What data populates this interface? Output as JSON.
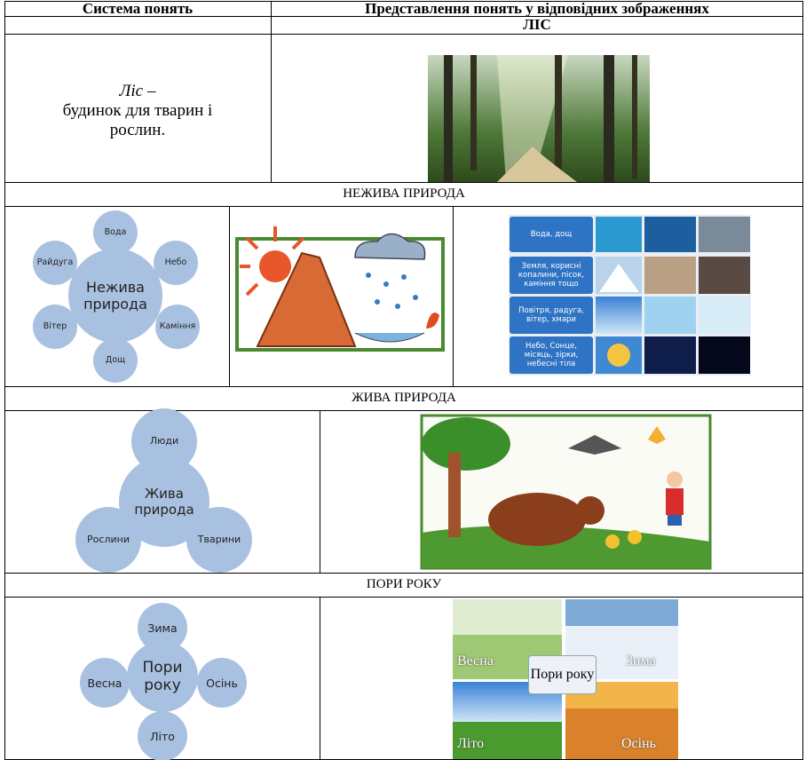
{
  "header": [
    "Система понять",
    "Представлення понять у відповідних зображеннях"
  ],
  "forest": {
    "title": "ЛІС",
    "term": "Ліс",
    "dash": "–",
    "text": "будинок для тварин і рослин."
  },
  "nonliving": {
    "title": "НЕЖИВА ПРИРОДА",
    "diagram": {
      "center": "Нежива природа",
      "nodes": [
        "Вода",
        "Небо",
        "Каміння",
        "Дощ",
        "Вітер",
        "Райдуга"
      ]
    },
    "photo_labels": [
      "Вода, дощ",
      "Земля, корисні копалини, пісок, каміння тощо",
      "Повітря, радуга, вітер, хмари",
      "Небо, Сонце, місяць, зірки, небесні тіла"
    ]
  },
  "living": {
    "title": "ЖИВА ПРИРОДА",
    "diagram": {
      "center": "Жива природа",
      "nodes": [
        "Люди",
        "Рослини",
        "Тварини"
      ]
    }
  },
  "seasons": {
    "title": "ПОРИ РОКУ",
    "diagram": {
      "center": "Пори року",
      "nodes": [
        "Зима",
        "Весна",
        "Осінь",
        "Літо"
      ]
    },
    "collage": {
      "center": "Пори року",
      "labels": [
        "Весна",
        "Зима",
        "Літо",
        "Осінь"
      ]
    }
  }
}
